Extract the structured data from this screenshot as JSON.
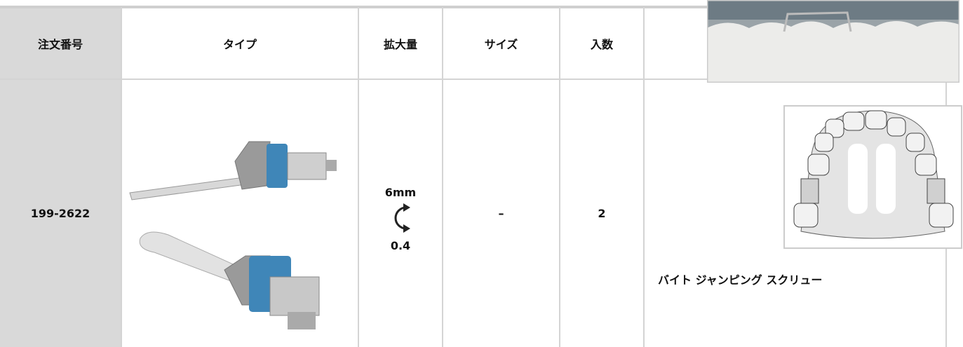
{
  "table": {
    "header": [
      "注文番号",
      "タイプ",
      "拡大量",
      "サイズ",
      "入数"
    ],
    "rows": [
      {
        "order_no": "199-2622",
        "expansion_top": "6mm",
        "expansion_bottom": "0.4",
        "size": "–",
        "quantity": "2",
        "name": "バイト ジャンピング スクリュー"
      }
    ]
  }
}
